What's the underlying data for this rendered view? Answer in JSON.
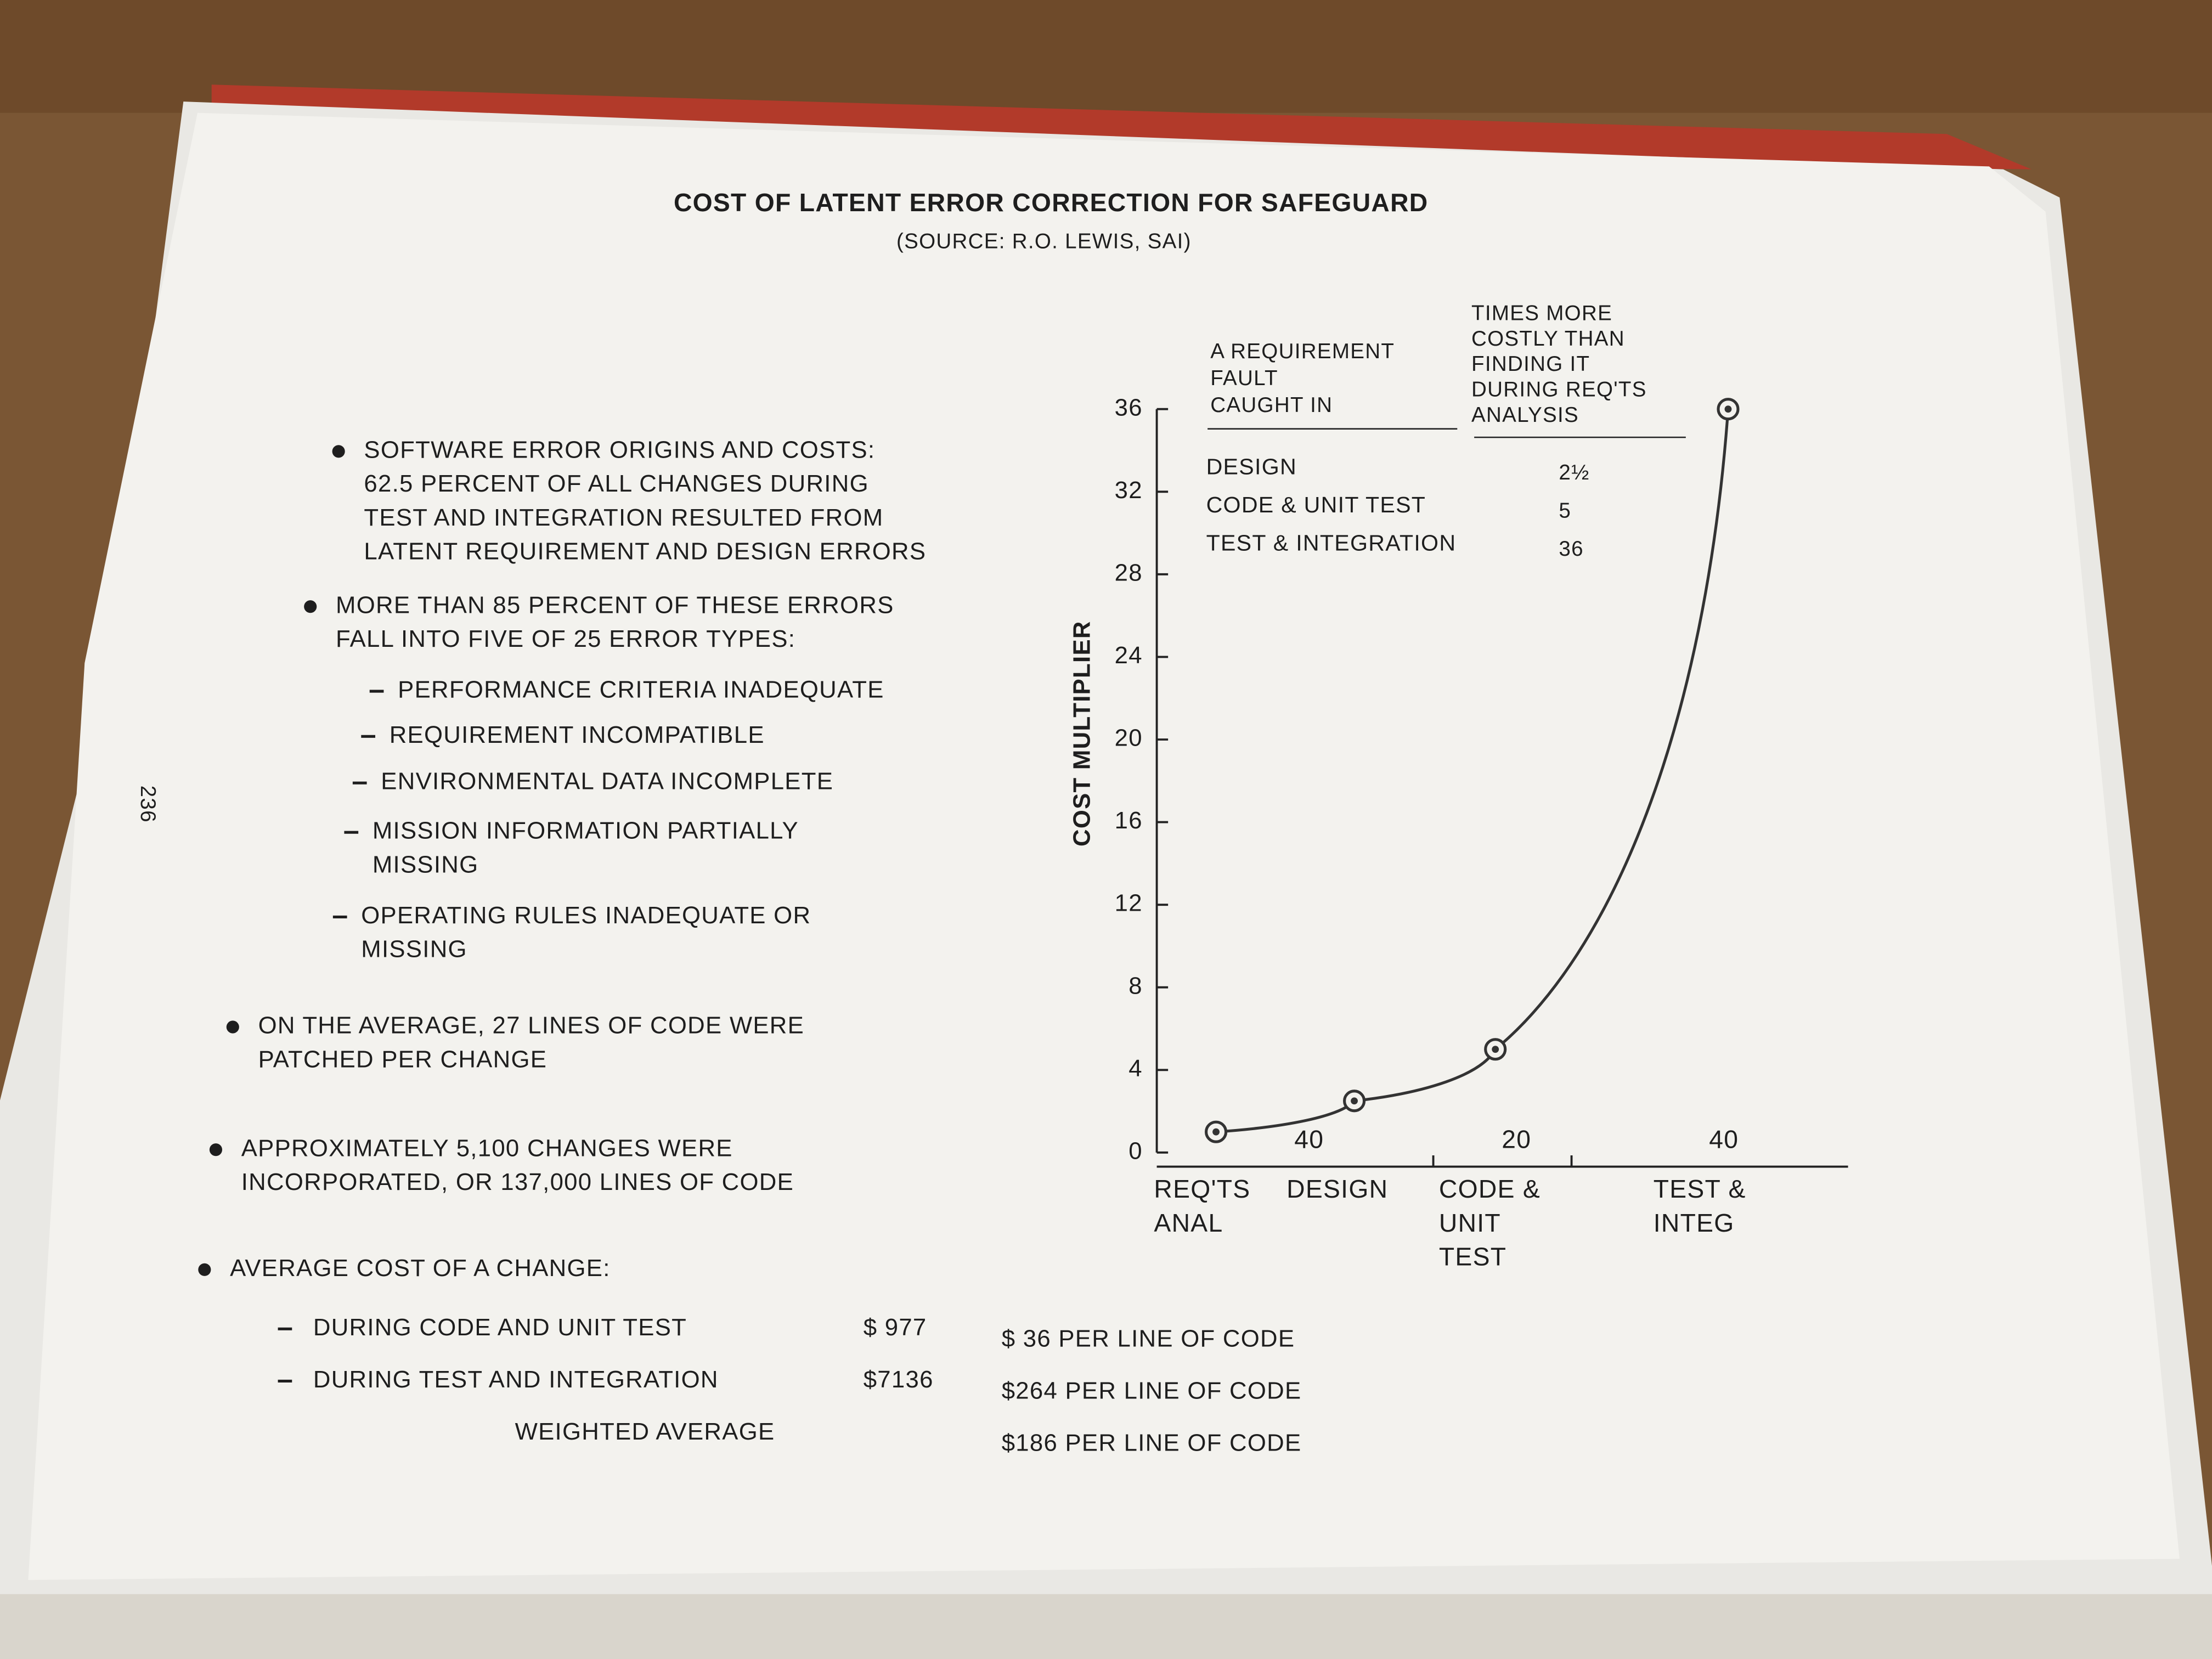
{
  "title": "COST OF LATENT ERROR CORRECTION FOR SAFEGUARD",
  "subtitle": "(SOURCE: R.O. LEWIS, SAI)",
  "page_number": "236",
  "bullets": [
    {
      "lines": [
        "SOFTWARE ERROR ORIGINS AND COSTS:",
        "62.5 PERCENT OF ALL CHANGES DURING",
        "TEST AND INTEGRATION RESULTED FROM",
        "LATENT REQUIREMENT AND DESIGN ERRORS"
      ]
    },
    {
      "lines": [
        "MORE THAN 85 PERCENT OF THESE ERRORS",
        "FALL INTO FIVE OF 25 ERROR TYPES:"
      ],
      "subitems": [
        [
          "PERFORMANCE CRITERIA INADEQUATE"
        ],
        [
          "REQUIREMENT INCOMPATIBLE"
        ],
        [
          "ENVIRONMENTAL DATA INCOMPLETE"
        ],
        [
          "MISSION INFORMATION PARTIALLY",
          "MISSING"
        ],
        [
          "OPERATING RULES INADEQUATE OR",
          "MISSING"
        ]
      ]
    },
    {
      "lines": [
        "ON THE AVERAGE, 27 LINES OF CODE WERE",
        "PATCHED PER CHANGE"
      ]
    },
    {
      "lines": [
        "APPROXIMATELY 5,100 CHANGES WERE",
        "INCORPORATED, OR 137,000 LINES OF CODE"
      ]
    },
    {
      "lines": [
        "AVERAGE COST OF A CHANGE:"
      ]
    }
  ],
  "cost_table": [
    {
      "label": "DURING CODE AND UNIT TEST",
      "cost": "$ 977",
      "per_line": "$ 36 PER LINE OF CODE"
    },
    {
      "label": "DURING TEST AND INTEGRATION",
      "cost": "$7136",
      "per_line": "$264 PER LINE OF CODE"
    },
    {
      "label": "WEIGHTED AVERAGE",
      "per_line": "$186 PER LINE OF CODE"
    }
  ],
  "inset_table": {
    "header": [
      [
        "A REQUIREMENT",
        "FAULT",
        "CAUGHT IN"
      ],
      [
        "TIMES MORE",
        "COSTLY THAN",
        "FINDING IT",
        "DURING REQ'TS",
        "ANALYSIS"
      ]
    ],
    "rows": [
      [
        "DESIGN",
        "2½"
      ],
      [
        "CODE & UNIT TEST",
        "5"
      ],
      [
        "TEST & INTEGRATION",
        "36"
      ]
    ]
  },
  "chart_data": {
    "type": "line",
    "y_label": "COST MULTIPLIER",
    "categories": [
      "REQ'TS ANAL",
      "DESIGN",
      "CODE & UNIT TEST",
      "TEST & INTEG"
    ],
    "values": [
      1,
      2.5,
      5,
      36
    ],
    "phase_durations": [
      40,
      20,
      40
    ],
    "color": "#333333",
    "ylim": [
      0,
      36
    ],
    "yticks": [
      0,
      4,
      8,
      12,
      16,
      20,
      24,
      28,
      32,
      36
    ]
  }
}
